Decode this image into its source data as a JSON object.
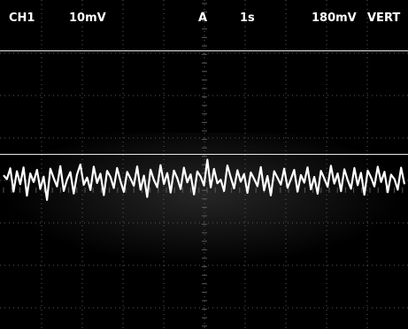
{
  "status_bar": {
    "channel": "CH1",
    "volts_per_div": "10mV",
    "trigger_source": "A",
    "time_per_div": "1s",
    "trigger_level": "180mV",
    "display_mode": "VERT"
  },
  "colors": {
    "background": "#000000",
    "trace": "#ffffff",
    "graticule": "#5a5a5a",
    "text": "#ffffff"
  },
  "chart_data": {
    "type": "line",
    "series": [
      {
        "values": [
          0.16,
          0.04,
          0.38,
          -0.35,
          0.29,
          -0.12,
          0.41,
          -0.48,
          0.22,
          -0.05,
          0.33,
          -0.27,
          0.12,
          -0.61,
          0.37,
          0.08,
          -0.19,
          0.45,
          -0.33,
          0.02,
          0.26,
          -0.41,
          0.18,
          0.5,
          -0.14,
          0.09,
          -0.3,
          0.43,
          -0.08,
          0.21,
          -0.46,
          0.3,
          0.11,
          -0.24,
          0.39,
          -0.02,
          -0.36,
          0.27,
          0.06,
          -0.17,
          0.44,
          -0.29,
          0.15,
          -0.52,
          0.34,
          0.01,
          -0.21,
          0.48,
          -0.11,
          0.23,
          -0.38,
          0.31,
          0.07,
          -0.27,
          0.4,
          -0.06,
          0.19,
          -0.44,
          0.28,
          0.12,
          -0.16,
          0.65,
          -0.22,
          0.36,
          -0.09,
          0.02,
          -0.33,
          0.47,
          0.1,
          -0.25,
          0.32,
          -0.04,
          0.2,
          -0.39,
          0.25,
          0.05,
          -0.18,
          0.42,
          -0.31,
          0.14,
          -0.47,
          0.29,
          0.08,
          -0.13,
          0.37,
          -0.23,
          0.03,
          0.33,
          -0.35,
          0.17,
          -0.07,
          0.41,
          -0.28,
          0.11,
          -0.42,
          0.3,
          0.06,
          -0.2,
          0.46,
          -0.1,
          0.22,
          -0.34,
          0.35,
          0.01,
          -0.26,
          0.39,
          -0.15,
          0.24,
          -0.45,
          0.31,
          0.09,
          -0.19,
          0.43,
          -0.05,
          0.27,
          -0.37,
          0.18,
          0.04,
          -0.29,
          0.4,
          -0.12
        ]
      }
    ],
    "ylim": [
      -4,
      4
    ],
    "grid": true
  }
}
